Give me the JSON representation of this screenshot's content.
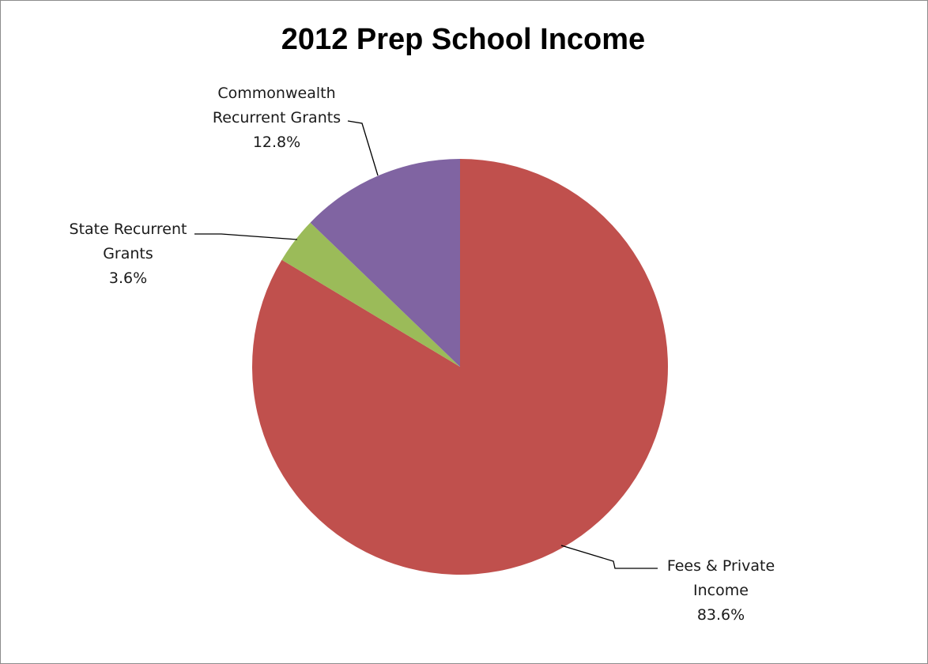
{
  "chart_data": {
    "type": "pie",
    "title": "2012 Prep School Income",
    "slices": [
      {
        "name": "Fees & Private Income",
        "label_lines": [
          "Fees & Private",
          "Income"
        ],
        "value": 83.6,
        "value_label": "83.6%",
        "color": "#C0504D"
      },
      {
        "name": "State Recurrent Grants",
        "label_lines": [
          "State Recurrent",
          "Grants"
        ],
        "value": 3.6,
        "value_label": "3.6%",
        "color": "#9BBB59"
      },
      {
        "name": "Commonwealth Recurrent Grants",
        "label_lines": [
          "Commonwealth",
          "Recurrent Grants"
        ],
        "value": 12.8,
        "value_label": "12.8%",
        "color": "#8064A2"
      }
    ],
    "start_angle": "12 o'clock",
    "direction": "clockwise",
    "legend": "none",
    "data_labels": "outside-with-leader-lines"
  }
}
